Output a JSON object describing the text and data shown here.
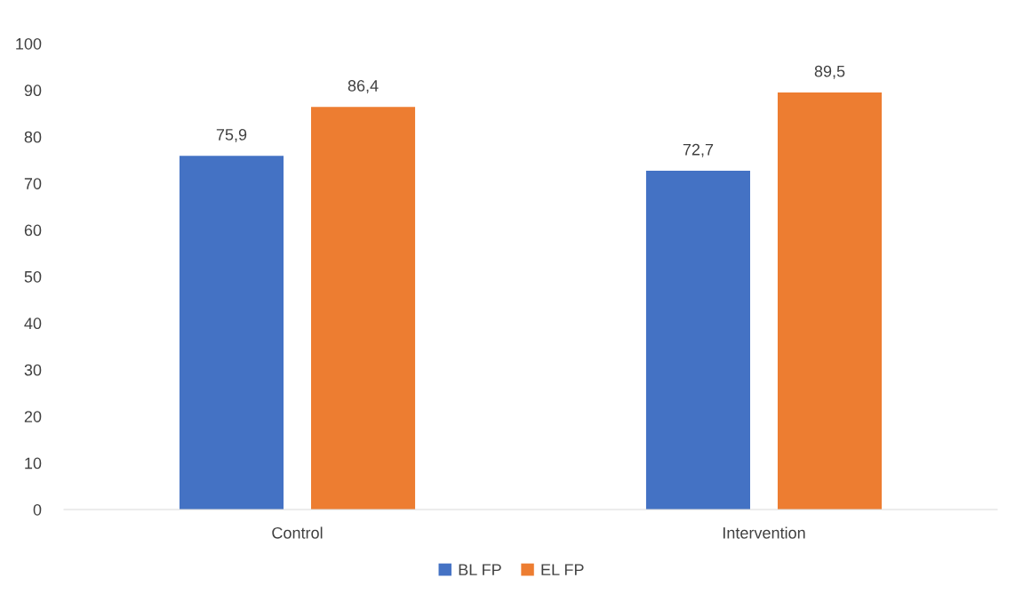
{
  "chart_data": {
    "type": "bar",
    "categories": [
      "Control",
      "Intervention"
    ],
    "series": [
      {
        "name": "BL FP",
        "color": "#4472c4",
        "values": [
          75.9,
          72.7
        ],
        "value_labels": [
          "75,9",
          "72,7"
        ]
      },
      {
        "name": "EL FP",
        "color": "#ed7d31",
        "values": [
          86.4,
          89.5
        ],
        "value_labels": [
          "86,4",
          "89,5"
        ]
      }
    ],
    "ylim": [
      0,
      100
    ],
    "yticks": [
      0,
      10,
      20,
      30,
      40,
      50,
      60,
      70,
      80,
      90,
      100
    ],
    "grid": false,
    "legend": "bottom"
  }
}
